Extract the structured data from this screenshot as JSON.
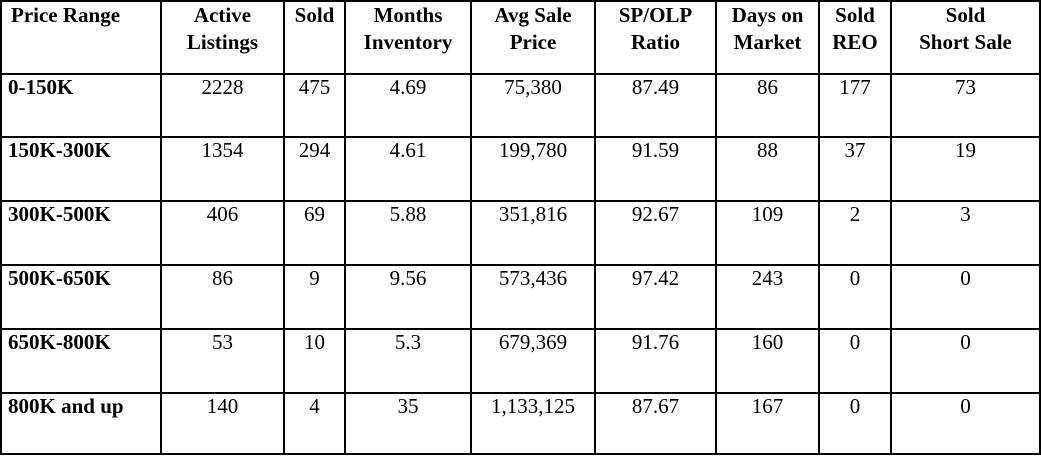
{
  "table": {
    "headers": [
      "Price Range",
      "Active\nListings",
      "Sold",
      "Months\nInventory",
      "Avg Sale\nPrice",
      "SP/OLP\nRatio",
      "Days on\nMarket",
      "Sold\nREO",
      "Sold\nShort Sale"
    ],
    "rows": [
      [
        "0-150K",
        "2228",
        "475",
        "4.69",
        "75,380",
        "87.49",
        "86",
        "177",
        "73"
      ],
      [
        "150K-300K",
        "1354",
        "294",
        "4.61",
        "199,780",
        "91.59",
        "88",
        "37",
        "19"
      ],
      [
        "300K-500K",
        "406",
        "69",
        "5.88",
        "351,816",
        "92.67",
        "109",
        "2",
        "3"
      ],
      [
        "500K-650K",
        "86",
        "9",
        "9.56",
        "573,436",
        "97.42",
        "243",
        "0",
        "0"
      ],
      [
        "650K-800K",
        "53",
        "10",
        "5.3",
        "679,369",
        "91.76",
        "160",
        "0",
        "0"
      ],
      [
        "800K and up",
        "140",
        "4",
        "35",
        "1,133,125",
        "87.67",
        "167",
        "0",
        "0"
      ]
    ]
  }
}
